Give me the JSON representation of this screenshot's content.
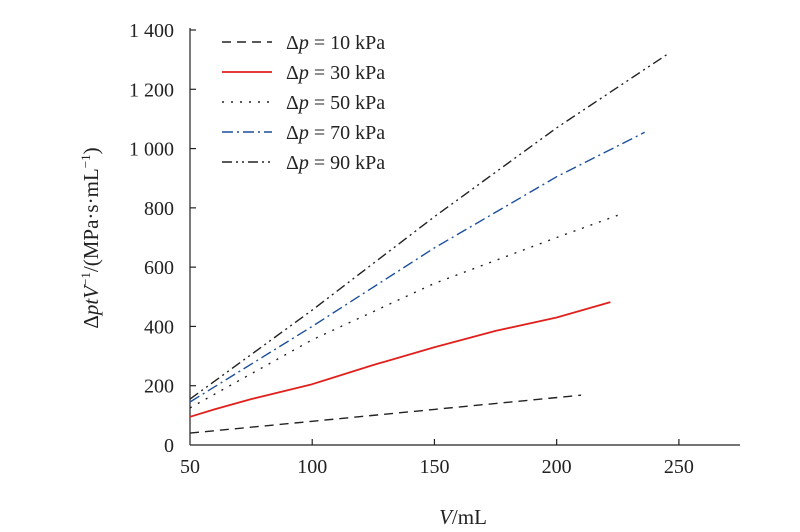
{
  "chart_data": {
    "type": "line",
    "xlabel": {
      "var": "V",
      "unit": "/mL"
    },
    "ylabel": {
      "prefix": "Δ",
      "vars": "ptV",
      "exp": "−1",
      "unit": "/(MPa·s·mL",
      "unit_exp": "−1",
      "close": ")"
    },
    "xlim": [
      50,
      275
    ],
    "ylim": [
      0,
      1400
    ],
    "x_ticks": [
      50,
      100,
      150,
      200,
      250
    ],
    "x_tick_labels": [
      "50",
      "100",
      "150",
      "200",
      "250"
    ],
    "y_ticks": [
      0,
      200,
      400,
      600,
      800,
      1000,
      1200,
      1400
    ],
    "y_tick_labels": [
      "0",
      "200",
      "400",
      "600",
      "800",
      "1 000",
      "1 200",
      "1 400"
    ],
    "grid": false,
    "legend_position": "top-left",
    "series": [
      {
        "name": "Δp = 10 kPa",
        "name_prefix": "Δ",
        "name_var": "p",
        "name_rest": " = 10 kPa",
        "color": "#222222",
        "dash": "9,6",
        "x": [
          50,
          100,
          150,
          210
        ],
        "y": [
          40,
          80,
          120,
          168
        ]
      },
      {
        "name": "Δp = 30 kPa",
        "name_prefix": "Δ",
        "name_var": "p",
        "name_rest": " = 30 kPa",
        "color": "#e0201c",
        "dash": "",
        "x": [
          50,
          60,
          75,
          100,
          125,
          150,
          175,
          200,
          222
        ],
        "y": [
          95,
          120,
          155,
          205,
          270,
          330,
          385,
          430,
          482
        ]
      },
      {
        "name": "Δp = 50 kPa",
        "name_prefix": "Δ",
        "name_var": "p",
        "name_rest": " = 50 kPa",
        "color": "#222222",
        "dash": "2,7",
        "x": [
          50,
          100,
          150,
          200,
          226
        ],
        "y": [
          125,
          355,
          545,
          700,
          778
        ]
      },
      {
        "name": "Δp = 70 kPa",
        "name_prefix": "Δ",
        "name_var": "p",
        "name_rest": " = 70 kPa",
        "color": "#1c4f9c",
        "dash": "11,4,2,4",
        "x": [
          50,
          100,
          150,
          200,
          236
        ],
        "y": [
          145,
          400,
          665,
          905,
          1055
        ]
      },
      {
        "name": "Δp = 90 kPa",
        "name_prefix": "Δ",
        "name_var": "p",
        "name_rest": " = 90 kPa",
        "color": "#222222",
        "dash": "10,4,2,4,2,4",
        "x": [
          50,
          100,
          150,
          200,
          246
        ],
        "y": [
          155,
          455,
          770,
          1070,
          1322
        ]
      }
    ]
  }
}
